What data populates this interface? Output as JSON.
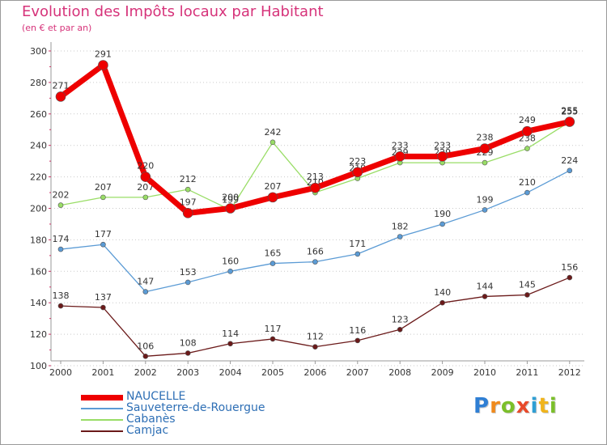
{
  "title": "Evolution des Impôts locaux par Habitant",
  "subtitle": "(en € et par an)",
  "brand": {
    "letters": [
      {
        "ch": "P",
        "color": "#2f7fd4"
      },
      {
        "ch": "r",
        "color": "#f08a1c"
      },
      {
        "ch": "o",
        "color": "#7bbf2a"
      },
      {
        "ch": "x",
        "color": "#e84a2a"
      },
      {
        "ch": "i",
        "color": "#2f9fd4"
      },
      {
        "ch": "t",
        "color": "#f0b41c"
      },
      {
        "ch": "i",
        "color": "#7bbf2a"
      }
    ]
  },
  "chart_data": {
    "type": "line",
    "x": [
      "2000",
      "2001",
      "2002",
      "2003",
      "2004",
      "2005",
      "2006",
      "2007",
      "2008",
      "2009",
      "2010",
      "2011",
      "2012"
    ],
    "ylim": [
      100,
      300
    ],
    "yticks": [
      100,
      120,
      140,
      160,
      180,
      200,
      220,
      240,
      260,
      280,
      300
    ],
    "grid": "y-dotted",
    "legend_placement": "bottom-left",
    "series": [
      {
        "name": "NAUCELLE",
        "color": "#ee0000",
        "values": [
          271,
          291,
          220,
          197,
          200,
          207,
          213,
          223,
          233,
          233,
          238,
          249,
          255
        ]
      },
      {
        "name": "Sauveterre-de-Rouergue",
        "color": "#5b9bd5",
        "values": [
          174,
          177,
          147,
          153,
          160,
          165,
          166,
          171,
          182,
          190,
          199,
          210,
          224
        ]
      },
      {
        "name": "Cabanès",
        "color": "#99dd66",
        "values": [
          202,
          207,
          207,
          212,
          199,
          242,
          210,
          219,
          229,
          229,
          229,
          238,
          255
        ]
      },
      {
        "name": "Camjac",
        "color": "#6b1a1a",
        "values": [
          138,
          137,
          106,
          108,
          114,
          117,
          112,
          116,
          123,
          140,
          144,
          145,
          156
        ]
      }
    ]
  }
}
